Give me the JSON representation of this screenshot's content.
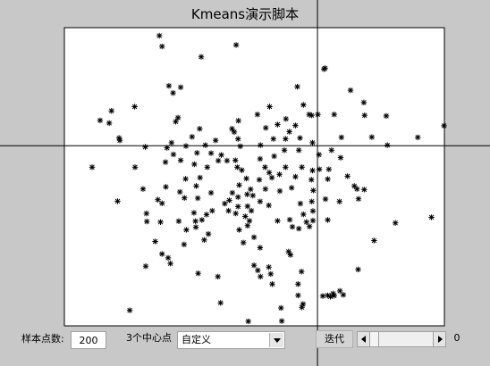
{
  "window": {
    "title": "Kmeans演示脚本"
  },
  "controls": {
    "sample_label": "样本点数:",
    "sample_value": "200",
    "centers_label": "3个中心点",
    "centers_select": "自定义",
    "iter_label": "迭代",
    "iter_value": "0"
  },
  "colors": {
    "background": "#c8c8c8",
    "plot_background": "#ffffff",
    "marker": "#000000",
    "crosshair": "#000000"
  },
  "chart_data": {
    "type": "scatter",
    "marker": "asterisk",
    "xlim": [
      0,
      1
    ],
    "ylim": [
      0,
      1
    ],
    "crosshair": {
      "x": 0.666,
      "y": 0.604
    },
    "points": [
      [
        0.25,
        0.973
      ],
      [
        0.257,
        0.937
      ],
      [
        0.452,
        0.942
      ],
      [
        0.36,
        0.902
      ],
      [
        0.683,
        0.861
      ],
      [
        0.686,
        0.864
      ],
      [
        0.275,
        0.805
      ],
      [
        0.306,
        0.8
      ],
      [
        0.286,
        0.781
      ],
      [
        0.613,
        0.802
      ],
      [
        0.753,
        0.79
      ],
      [
        0.124,
        0.721
      ],
      [
        0.185,
        0.735
      ],
      [
        0.54,
        0.735
      ],
      [
        0.629,
        0.741
      ],
      [
        0.788,
        0.749
      ],
      [
        0.094,
        0.689
      ],
      [
        0.118,
        0.68
      ],
      [
        0.299,
        0.698
      ],
      [
        0.293,
        0.685
      ],
      [
        0.458,
        0.688
      ],
      [
        0.508,
        0.709
      ],
      [
        0.583,
        0.694
      ],
      [
        0.644,
        0.709
      ],
      [
        0.651,
        0.706
      ],
      [
        0.667,
        0.709
      ],
      [
        0.71,
        0.709
      ],
      [
        0.79,
        0.706
      ],
      [
        0.847,
        0.704
      ],
      [
        0.561,
        0.675
      ],
      [
        0.608,
        0.672
      ],
      [
        0.53,
        0.664
      ],
      [
        0.441,
        0.661
      ],
      [
        0.447,
        0.65
      ],
      [
        0.356,
        0.661
      ],
      [
        0.144,
        0.63
      ],
      [
        0.146,
        0.622
      ],
      [
        0.213,
        0.6
      ],
      [
        0.282,
        0.614
      ],
      [
        0.336,
        0.634
      ],
      [
        0.32,
        0.603
      ],
      [
        0.371,
        0.606
      ],
      [
        0.398,
        0.622
      ],
      [
        0.457,
        0.627
      ],
      [
        0.463,
        0.602
      ],
      [
        0.516,
        0.606
      ],
      [
        0.55,
        0.627
      ],
      [
        0.582,
        0.627
      ],
      [
        0.592,
        0.651
      ],
      [
        0.62,
        0.63
      ],
      [
        0.653,
        0.614
      ],
      [
        0.729,
        0.632
      ],
      [
        0.809,
        0.633
      ],
      [
        0.85,
        0.606
      ],
      [
        0.93,
        0.632
      ],
      [
        0.999,
        0.671
      ],
      [
        0.27,
        0.597
      ],
      [
        0.287,
        0.575
      ],
      [
        0.413,
        0.573
      ],
      [
        0.386,
        0.579
      ],
      [
        0.349,
        0.58
      ],
      [
        0.405,
        0.554
      ],
      [
        0.428,
        0.554
      ],
      [
        0.45,
        0.555
      ],
      [
        0.515,
        0.56
      ],
      [
        0.552,
        0.569
      ],
      [
        0.579,
        0.589
      ],
      [
        0.617,
        0.589
      ],
      [
        0.67,
        0.574
      ],
      [
        0.703,
        0.589
      ],
      [
        0.727,
        0.564
      ],
      [
        0.073,
        0.532
      ],
      [
        0.186,
        0.532
      ],
      [
        0.266,
        0.549
      ],
      [
        0.306,
        0.555
      ],
      [
        0.342,
        0.542
      ],
      [
        0.376,
        0.532
      ],
      [
        0.455,
        0.532
      ],
      [
        0.467,
        0.522
      ],
      [
        0.528,
        0.532
      ],
      [
        0.539,
        0.514
      ],
      [
        0.582,
        0.532
      ],
      [
        0.625,
        0.532
      ],
      [
        0.653,
        0.521
      ],
      [
        0.671,
        0.525
      ],
      [
        0.696,
        0.525
      ],
      [
        0.319,
        0.493
      ],
      [
        0.357,
        0.497
      ],
      [
        0.479,
        0.494
      ],
      [
        0.513,
        0.49
      ],
      [
        0.546,
        0.497
      ],
      [
        0.566,
        0.508
      ],
      [
        0.608,
        0.5
      ],
      [
        0.65,
        0.49
      ],
      [
        0.693,
        0.492
      ],
      [
        0.745,
        0.502
      ],
      [
        0.207,
        0.459
      ],
      [
        0.267,
        0.466
      ],
      [
        0.304,
        0.449
      ],
      [
        0.347,
        0.469
      ],
      [
        0.386,
        0.446
      ],
      [
        0.442,
        0.446
      ],
      [
        0.46,
        0.472
      ],
      [
        0.49,
        0.458
      ],
      [
        0.457,
        0.432
      ],
      [
        0.481,
        0.441
      ],
      [
        0.496,
        0.437
      ],
      [
        0.529,
        0.459
      ],
      [
        0.567,
        0.452
      ],
      [
        0.598,
        0.463
      ],
      [
        0.655,
        0.454
      ],
      [
        0.763,
        0.469
      ],
      [
        0.77,
        0.459
      ],
      [
        0.789,
        0.457
      ],
      [
        0.724,
        0.417
      ],
      [
        0.774,
        0.426
      ],
      [
        0.14,
        0.418
      ],
      [
        0.246,
        0.423
      ],
      [
        0.257,
        0.411
      ],
      [
        0.316,
        0.429
      ],
      [
        0.351,
        0.428
      ],
      [
        0.422,
        0.41
      ],
      [
        0.434,
        0.421
      ],
      [
        0.457,
        0.4
      ],
      [
        0.482,
        0.401
      ],
      [
        0.515,
        0.417
      ],
      [
        0.538,
        0.404
      ],
      [
        0.621,
        0.41
      ],
      [
        0.651,
        0.417
      ],
      [
        0.687,
        0.425
      ],
      [
        0.216,
        0.377
      ],
      [
        0.341,
        0.379
      ],
      [
        0.374,
        0.373
      ],
      [
        0.389,
        0.386
      ],
      [
        0.432,
        0.386
      ],
      [
        0.451,
        0.377
      ],
      [
        0.476,
        0.367
      ],
      [
        0.492,
        0.386
      ],
      [
        0.629,
        0.374
      ],
      [
        0.654,
        0.385
      ],
      [
        0.217,
        0.35
      ],
      [
        0.253,
        0.348
      ],
      [
        0.301,
        0.351
      ],
      [
        0.345,
        0.351
      ],
      [
        0.362,
        0.355
      ],
      [
        0.487,
        0.352
      ],
      [
        0.561,
        0.352
      ],
      [
        0.593,
        0.356
      ],
      [
        0.637,
        0.348
      ],
      [
        0.654,
        0.353
      ],
      [
        0.693,
        0.355
      ],
      [
        0.871,
        0.345
      ],
      [
        0.966,
        0.364
      ],
      [
        0.321,
        0.322
      ],
      [
        0.346,
        0.331
      ],
      [
        0.379,
        0.308
      ],
      [
        0.46,
        0.322
      ],
      [
        0.482,
        0.336
      ],
      [
        0.6,
        0.332
      ],
      [
        0.617,
        0.326
      ],
      [
        0.645,
        0.333
      ],
      [
        0.239,
        0.283
      ],
      [
        0.315,
        0.273
      ],
      [
        0.368,
        0.288
      ],
      [
        0.471,
        0.279
      ],
      [
        0.499,
        0.297
      ],
      [
        0.257,
        0.241
      ],
      [
        0.273,
        0.228
      ],
      [
        0.515,
        0.262
      ],
      [
        0.59,
        0.249
      ],
      [
        0.595,
        0.238
      ],
      [
        0.815,
        0.286
      ],
      [
        0.214,
        0.2
      ],
      [
        0.279,
        0.209
      ],
      [
        0.499,
        0.203
      ],
      [
        0.509,
        0.186
      ],
      [
        0.352,
        0.176
      ],
      [
        0.404,
        0.165
      ],
      [
        0.516,
        0.165
      ],
      [
        0.538,
        0.197
      ],
      [
        0.543,
        0.174
      ],
      [
        0.547,
        0.14
      ],
      [
        0.615,
        0.102
      ],
      [
        0.68,
        0.1
      ],
      [
        0.7,
        0.098
      ],
      [
        0.773,
        0.189
      ],
      [
        0.172,
        0.052
      ],
      [
        0.411,
        0.077
      ],
      [
        0.484,
        0.015
      ],
      [
        0.57,
        0.06
      ],
      [
        0.572,
        0.016
      ],
      [
        0.624,
        0.182
      ],
      [
        0.693,
        0.102
      ],
      [
        0.707,
        0.108
      ],
      [
        0.71,
        0.101
      ],
      [
        0.725,
        0.117
      ],
      [
        0.734,
        0.104
      ],
      [
        0.615,
        0.14
      ],
      [
        0.625,
        0.062
      ],
      [
        0.628,
        0.073
      ]
    ]
  }
}
